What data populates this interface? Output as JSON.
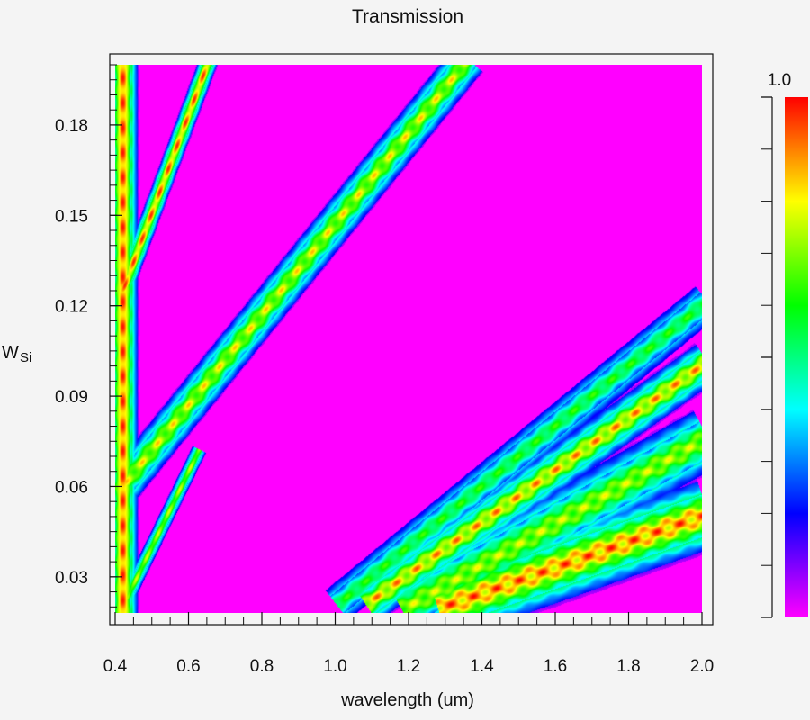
{
  "chart_data": {
    "type": "heatmap",
    "title": "Transmission",
    "xlabel": "wavelength (um)",
    "ylabel_main": "W",
    "ylabel_sub": "Si",
    "xlim": [
      0.4,
      2.0
    ],
    "ylim": [
      0.018,
      0.2
    ],
    "xticks": [
      0.4,
      0.6,
      0.8,
      1.0,
      1.2,
      1.4,
      1.6,
      1.8,
      2.0
    ],
    "xtick_labels": [
      "0.4",
      "0.6",
      "0.8",
      "1.0",
      "1.2",
      "1.4",
      "1.6",
      "1.8",
      "2.0"
    ],
    "yticks": [
      0.03,
      0.06,
      0.09,
      0.12,
      0.15,
      0.18
    ],
    "ytick_labels": [
      "0.03",
      "0.06",
      "0.09",
      "0.12",
      "0.15",
      "0.18"
    ],
    "colorbar": {
      "max_label": "1.0",
      "range": [
        0,
        1.0
      ],
      "colors": [
        "#ff00ff",
        "#0000ff",
        "#00ffff",
        "#00ff00",
        "#ffff00",
        "#ff0000"
      ]
    },
    "background": "#ff00ff",
    "bands": [
      {
        "name": "left edge band",
        "x0": 0.42,
        "y0": 0.02,
        "x1": 0.42,
        "y1": 0.2,
        "width": 0.04,
        "peak": 0.85,
        "ripple": 0.15
      },
      {
        "name": "upper thin band",
        "x0": 0.42,
        "y0": 0.125,
        "x1": 0.65,
        "y1": 0.2,
        "width": 0.025,
        "peak": 0.8,
        "ripple": 0.2
      },
      {
        "name": "lower branch",
        "x0": 0.42,
        "y0": 0.02,
        "x1": 0.62,
        "y1": 0.07,
        "width": 0.02,
        "peak": 0.55,
        "ripple": 0.2
      },
      {
        "name": "main diagonal band",
        "x0": 0.42,
        "y0": 0.06,
        "x1": 1.35,
        "y1": 0.2,
        "width": 0.05,
        "peak": 0.6,
        "ripple": 0.3
      },
      {
        "name": "lower right band 1",
        "x0": 1.02,
        "y0": 0.022,
        "x1": 2.0,
        "y1": 0.12,
        "width": 0.05,
        "peak": 0.35,
        "ripple": 0.35
      },
      {
        "name": "lower right band 2",
        "x0": 1.1,
        "y0": 0.022,
        "x1": 2.0,
        "y1": 0.1,
        "width": 0.055,
        "peak": 0.7,
        "ripple": 0.3
      },
      {
        "name": "lower right band 3",
        "x0": 1.2,
        "y0": 0.02,
        "x1": 2.0,
        "y1": 0.075,
        "width": 0.08,
        "peak": 0.55,
        "ripple": 0.3
      },
      {
        "name": "lower right band 4",
        "x0": 1.3,
        "y0": 0.02,
        "x1": 2.0,
        "y1": 0.05,
        "width": 0.09,
        "peak": 0.8,
        "ripple": 0.25
      }
    ]
  }
}
